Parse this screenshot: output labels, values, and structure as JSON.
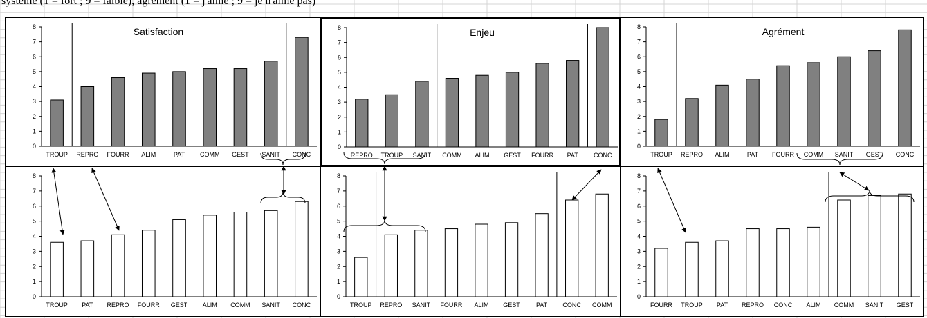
{
  "caption": "système (1 = fort ; 9 = faible), agrément (1 = j'aime ; 9 = je n'aime pas)",
  "colors": {
    "bar_gray": "#808080",
    "bar_white": "#ffffff",
    "stroke": "#000000",
    "grid": "#d4d4d4"
  },
  "chart_data": [
    {
      "type": "bar",
      "title": "Satisfaction",
      "ylim": [
        0,
        8
      ],
      "yticks": [
        0,
        1,
        2,
        3,
        4,
        5,
        6,
        7,
        8
      ],
      "fill": "gray",
      "categories": [
        "TROUP",
        "REPRO",
        "FOURR",
        "ALIM",
        "PAT",
        "COMM",
        "GEST",
        "SANIT",
        "CONC"
      ],
      "values": [
        3.1,
        4.0,
        4.6,
        4.9,
        5.0,
        5.2,
        5.2,
        5.7,
        7.3
      ],
      "group_separators_after": [
        1,
        8
      ]
    },
    {
      "type": "bar",
      "title": "Enjeu",
      "ylim": [
        0,
        8
      ],
      "yticks": [
        0,
        1,
        2,
        3,
        4,
        5,
        6,
        7,
        8
      ],
      "fill": "gray",
      "categories": [
        "REPRO",
        "TROUP",
        "SANIT",
        "COMM",
        "ALIM",
        "GEST",
        "FOURR",
        "PAT",
        "CONC"
      ],
      "values": [
        3.2,
        3.5,
        4.4,
        4.6,
        4.8,
        5.0,
        5.6,
        5.8,
        8.0
      ],
      "group_separators_after": [
        3,
        8
      ]
    },
    {
      "type": "bar",
      "title": "Agrément",
      "ylim": [
        0,
        8
      ],
      "yticks": [
        0,
        1,
        2,
        3,
        4,
        5,
        6,
        7,
        8
      ],
      "fill": "gray",
      "categories": [
        "TROUP",
        "REPRO",
        "ALIM",
        "PAT",
        "FOURR",
        "COMM",
        "SANIT",
        "GEST",
        "CONC"
      ],
      "values": [
        1.8,
        3.2,
        4.1,
        4.5,
        5.4,
        5.6,
        6.0,
        6.4,
        7.8
      ],
      "group_separators_after": [
        1
      ]
    },
    {
      "type": "bar",
      "title": "",
      "ylim": [
        0,
        8
      ],
      "yticks": [
        0,
        1,
        2,
        3,
        4,
        5,
        6,
        7,
        8
      ],
      "fill": "white",
      "categories": [
        "TROUP",
        "PAT",
        "REPRO",
        "FOURR",
        "GEST",
        "ALIM",
        "COMM",
        "SANIT",
        "CONC"
      ],
      "values": [
        3.6,
        3.7,
        4.1,
        4.4,
        5.1,
        5.4,
        5.6,
        5.7,
        6.3
      ],
      "group_separators_after": []
    },
    {
      "type": "bar",
      "title": "",
      "ylim": [
        0,
        8
      ],
      "yticks": [
        0,
        1,
        2,
        3,
        4,
        5,
        6,
        7,
        8
      ],
      "fill": "white",
      "categories": [
        "TROUP",
        "REPRO",
        "SANIT",
        "FOURR",
        "ALIM",
        "GEST",
        "PAT",
        "CONC",
        "COMM"
      ],
      "values": [
        2.6,
        4.1,
        4.4,
        4.5,
        4.8,
        4.9,
        5.5,
        6.4,
        6.8
      ],
      "group_separators_after": [
        1,
        7
      ]
    },
    {
      "type": "bar",
      "title": "",
      "ylim": [
        0,
        8
      ],
      "yticks": [
        0,
        1,
        2,
        3,
        4,
        5,
        6,
        7,
        8
      ],
      "fill": "white",
      "categories": [
        "FOURR",
        "TROUP",
        "PAT",
        "REPRO",
        "CONC",
        "ALIM",
        "COMM",
        "SANIT",
        "GEST"
      ],
      "values": [
        3.2,
        3.6,
        3.7,
        4.5,
        4.5,
        4.6,
        6.4,
        6.7,
        6.8
      ],
      "group_separators_after": [
        6
      ]
    }
  ]
}
